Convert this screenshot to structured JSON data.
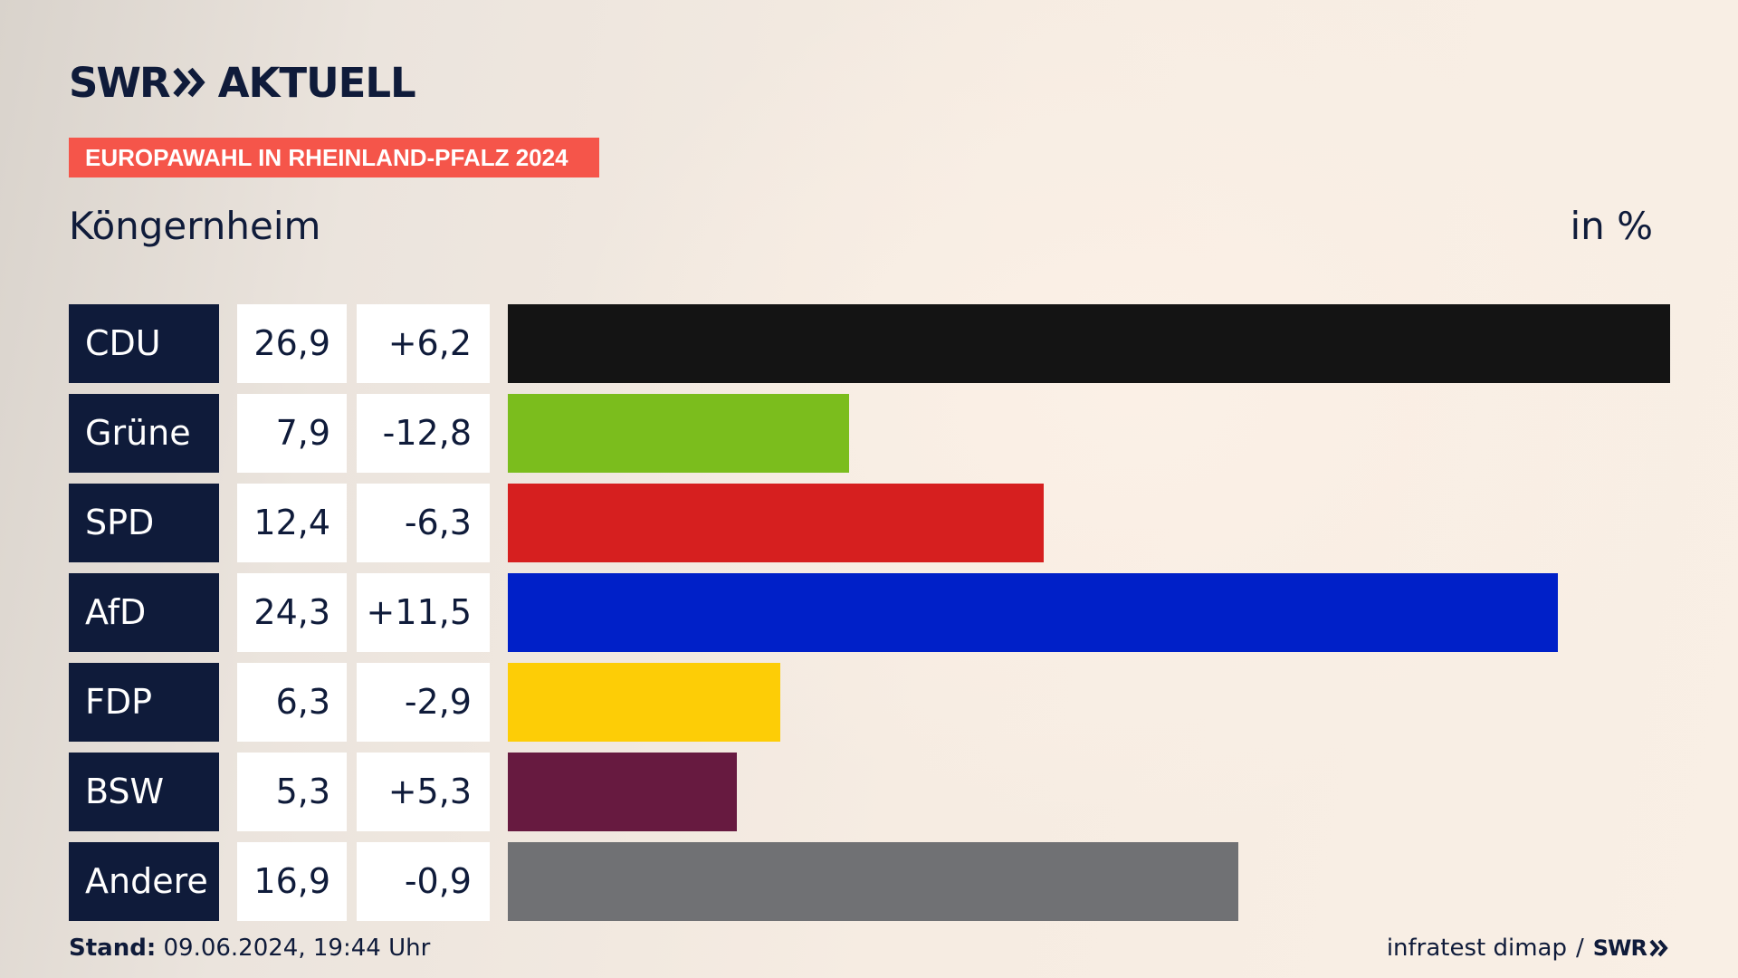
{
  "brand": {
    "logo_text": "SWR",
    "section": "AKTUELL"
  },
  "badge": "EUROPAWAHL IN RHEINLAND-PFALZ 2024",
  "location": "Köngernheim",
  "unit": "in %",
  "footer": {
    "stand_label": "Stand:",
    "stand_value": "09.06.2024, 19:44 Uhr",
    "source": "infratest dimap",
    "separator": "/",
    "source_brand": "SWR"
  },
  "colors": {
    "navy": "#0f1b3a",
    "badge": "#f5554a"
  },
  "chart_data": {
    "type": "bar",
    "orientation": "horizontal",
    "title": "Köngernheim",
    "unit": "in %",
    "categories": [
      "CDU",
      "Grüne",
      "SPD",
      "AfD",
      "FDP",
      "BSW",
      "Andere"
    ],
    "values": [
      26.9,
      7.9,
      12.4,
      24.3,
      6.3,
      5.3,
      16.9
    ],
    "value_labels": [
      "26,9",
      "7,9",
      "12,4",
      "24,3",
      "6,3",
      "5,3",
      "16,9"
    ],
    "changes": [
      6.2,
      -12.8,
      -6.3,
      11.5,
      -2.9,
      5.3,
      -0.9
    ],
    "change_labels": [
      "+6,2",
      "-12,8",
      "-6,3",
      "+11,5",
      "-2,9",
      "+5,3",
      "-0,9"
    ],
    "bar_colors": [
      "#141414",
      "#7bbd1d",
      "#d61f1f",
      "#0020c8",
      "#fdcd06",
      "#671a40",
      "#707174"
    ],
    "xlim": [
      0,
      26.9
    ]
  }
}
